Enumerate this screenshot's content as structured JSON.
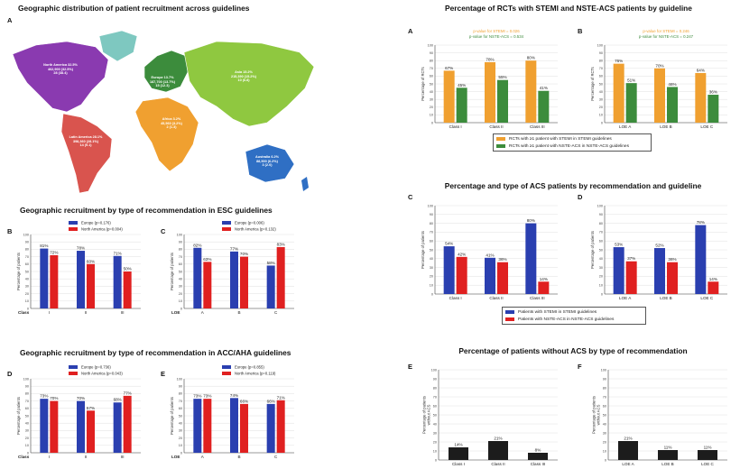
{
  "colors": {
    "blue": "#2a3fb0",
    "red": "#e02020",
    "orange": "#f0a030",
    "green": "#3c8c3c",
    "black": "#1c1c1c",
    "grid": "#d8d8d8",
    "axis": "#444444"
  },
  "titles": {
    "map": "Geographic distribution of patient recruitment across guidelines",
    "esc": "Geographic recruitment by type of recommendation in ESC guidelines",
    "acc": "Geographic recruitment by type of recommendation in ACC/AHA guidelines",
    "rct": "Percentage of RCTs with STEMI and NSTE-ACS patients by guideline",
    "acs": "Percentage and type of ACS patients by recommendation and guideline",
    "noacs": "Percentage of patients without ACS by type of recommendation"
  },
  "panel_letters": {
    "map": "A",
    "esc_class": "B",
    "esc_loe": "C",
    "acc_class": "D",
    "acc_loe": "E",
    "rct_class": "A",
    "rct_loe": "B",
    "acs_class": "C",
    "acs_loe": "D",
    "noacs_class": "E",
    "noacs_loe": "F"
  },
  "map_labels": {
    "north_america": {
      "name": "North America 32.5%",
      "l2": "462,900 (32.5%)",
      "l3": "28 (38.4)"
    },
    "europe": {
      "name": "Europe 13.7%",
      "l2": "187,700 (13.7%)",
      "l3": "15 (12.3)"
    },
    "asia": {
      "name": "Asia 15.2%",
      "l2": "215,390 (15.2%)",
      "l3": "10 (6.8)"
    },
    "africa": {
      "name": "Africa 3.2%",
      "l2": "45,560 (3.2%)",
      "l3": "2 (1.3)"
    },
    "latin_america": {
      "name": "Latin America 28.1%",
      "l2": "398,360 (28.1%)",
      "l3": "14 (9.1)"
    },
    "australia": {
      "name": "Australia 6.2%",
      "l2": "88,500 (6.2%)",
      "l3": "3 (2.0)"
    }
  },
  "legends": {
    "rct": [
      "RCTs with ≥1 patient with STEMI in STEMI guidelines",
      "RCTs with ≥1 patient  with NSTE-ACS in  NSTE-ACS guidelines"
    ],
    "acs": [
      "Patients with STEMI in STEMI guidelines",
      "Patients with NSTE-ACS in  NSTE-ACS guidelines"
    ]
  },
  "chart_data": [
    {
      "id": "esc_class",
      "type": "bar",
      "axis_label": "Class",
      "categories": [
        "I",
        "II",
        "III"
      ],
      "ylabel": "Percentage of patients",
      "ylim": [
        0,
        100
      ],
      "series": [
        {
          "name": "Europe (p=0.176)",
          "values": [
            81,
            78,
            71
          ]
        },
        {
          "name": "North America (p=0.004)",
          "values": [
            72,
            60,
            50
          ]
        }
      ],
      "value_labels": [
        [
          "81%",
          "78%",
          "71%"
        ],
        [
          "72%",
          "60%",
          "50%"
        ]
      ]
    },
    {
      "id": "esc_loe",
      "type": "bar",
      "axis_label": "LOE",
      "categories": [
        "A",
        "B",
        "C"
      ],
      "ylabel": "Percentage of patients",
      "ylim": [
        0,
        100
      ],
      "series": [
        {
          "name": "Europe (p=0.006)",
          "values": [
            82,
            77,
            58
          ]
        },
        {
          "name": "North America (p=0.132)",
          "values": [
            63,
            70,
            83
          ]
        }
      ],
      "value_labels": [
        [
          "82%",
          "77%",
          "58%"
        ],
        [
          "63%",
          "70%",
          "83%"
        ]
      ]
    },
    {
      "id": "acc_class",
      "type": "bar",
      "axis_label": "Class",
      "categories": [
        "I",
        "II",
        "III"
      ],
      "ylabel": "Percentage of patients",
      "ylim": [
        0,
        100
      ],
      "series": [
        {
          "name": "Europe (p=0.736)",
          "values": [
            73,
            70,
            68
          ]
        },
        {
          "name": "North America (p=0.043)",
          "values": [
            70,
            57,
            77
          ]
        }
      ],
      "value_labels": [
        [
          "73%",
          "70%",
          "68%"
        ],
        [
          "70%",
          "57%",
          "77%"
        ]
      ]
    },
    {
      "id": "acc_loe",
      "type": "bar",
      "axis_label": "LOE",
      "categories": [
        "A",
        "B",
        "C"
      ],
      "ylabel": "Percentage of patients",
      "ylim": [
        0,
        100
      ],
      "series": [
        {
          "name": "Europe (p=0.855)",
          "values": [
            73,
            74,
            66
          ]
        },
        {
          "name": "North America (p=0.119)",
          "values": [
            73,
            66,
            71
          ]
        }
      ],
      "value_labels": [
        [
          "73%",
          "74%",
          "66%"
        ],
        [
          "73%",
          "66%",
          "71%"
        ]
      ]
    },
    {
      "id": "rct_class",
      "type": "bar",
      "axis_label": "",
      "categories": [
        "Class I",
        "Class II",
        "Class III"
      ],
      "ylabel": "Percentage of RCTs",
      "ylim": [
        0,
        100
      ],
      "pvalues": [
        "p-value for STEMI = 0.026",
        "p-value for NSTE-ACS = 0.534"
      ],
      "series": [
        {
          "name": "RCTs with ≥1 patient with STEMI in STEMI guidelines",
          "values": [
            67,
            78,
            80
          ]
        },
        {
          "name": "RCTs with ≥1 patient  with NSTE-ACS in  NSTE-ACS guidelines",
          "values": [
            45,
            55,
            41
          ]
        }
      ],
      "value_labels": [
        [
          "67%",
          "78%",
          "80%"
        ],
        [
          "45%",
          "55%",
          "41%"
        ]
      ]
    },
    {
      "id": "rct_loe",
      "type": "bar",
      "axis_label": "",
      "categories": [
        "LOE A",
        "LOE B",
        "LOE C"
      ],
      "ylabel": "Percentage of RCTs",
      "ylim": [
        0,
        100
      ],
      "pvalues": [
        "p-value for STEMI = 0.246",
        "p-value for NSTE-ACS = 0.247"
      ],
      "series": [
        {
          "name": "RCTs with ≥1 patient with STEMI in STEMI guidelines",
          "values": [
            76,
            70,
            64
          ]
        },
        {
          "name": "RCTs with ≥1 patient  with NSTE-ACS in  NSTE-ACS guidelines",
          "values": [
            51,
            46,
            36
          ]
        }
      ],
      "value_labels": [
        [
          "76%",
          "70%",
          "64%"
        ],
        [
          "51%",
          "46%",
          "36%"
        ]
      ]
    },
    {
      "id": "acs_class",
      "type": "bar",
      "axis_label": "",
      "categories": [
        "Class I",
        "Class II",
        "Class III"
      ],
      "ylabel": "Percentage of patients",
      "ylim": [
        0,
        100
      ],
      "series": [
        {
          "name": "Patients with STEMI in STEMI guidelines",
          "values": [
            54,
            41,
            80
          ]
        },
        {
          "name": "Patients with NSTE-ACS in  NSTE-ACS guidelines",
          "values": [
            42,
            36,
            14
          ]
        }
      ],
      "value_labels": [
        [
          "54%",
          "41%",
          "80%"
        ],
        [
          "42%",
          "36%",
          "14%"
        ]
      ]
    },
    {
      "id": "acs_loe",
      "type": "bar",
      "axis_label": "",
      "categories": [
        "LOE A",
        "LOE B",
        "LOE C"
      ],
      "ylabel": "Percentage of patients",
      "ylim": [
        0,
        100
      ],
      "series": [
        {
          "name": "Patients with STEMI in STEMI guidelines",
          "values": [
            53,
            52,
            78
          ]
        },
        {
          "name": "Patients with NSTE-ACS in  NSTE-ACS guidelines",
          "values": [
            37,
            36,
            14
          ]
        }
      ],
      "value_labels": [
        [
          "53%",
          "52%",
          "78%"
        ],
        [
          "37%",
          "36%",
          "14%"
        ]
      ]
    },
    {
      "id": "noacs_class",
      "type": "bar",
      "axis_label": "",
      "categories": [
        "Class I",
        "Class II",
        "Class III"
      ],
      "ylabel": "Percentage of patients without ACS",
      "ylim": [
        0,
        100
      ],
      "series": [
        {
          "name": "",
          "values": [
            14,
            21,
            8
          ]
        }
      ],
      "value_labels": [
        [
          "14%",
          "21%",
          "8%"
        ]
      ]
    },
    {
      "id": "noacs_loe",
      "type": "bar",
      "axis_label": "",
      "categories": [
        "LOE A",
        "LOE B",
        "LOE C"
      ],
      "ylabel": "Percentage of patients without ACS",
      "ylim": [
        0,
        100
      ],
      "series": [
        {
          "name": "",
          "values": [
            21,
            11,
            11
          ]
        }
      ],
      "value_labels": [
        [
          "21%",
          "11%",
          "11%"
        ]
      ]
    }
  ]
}
